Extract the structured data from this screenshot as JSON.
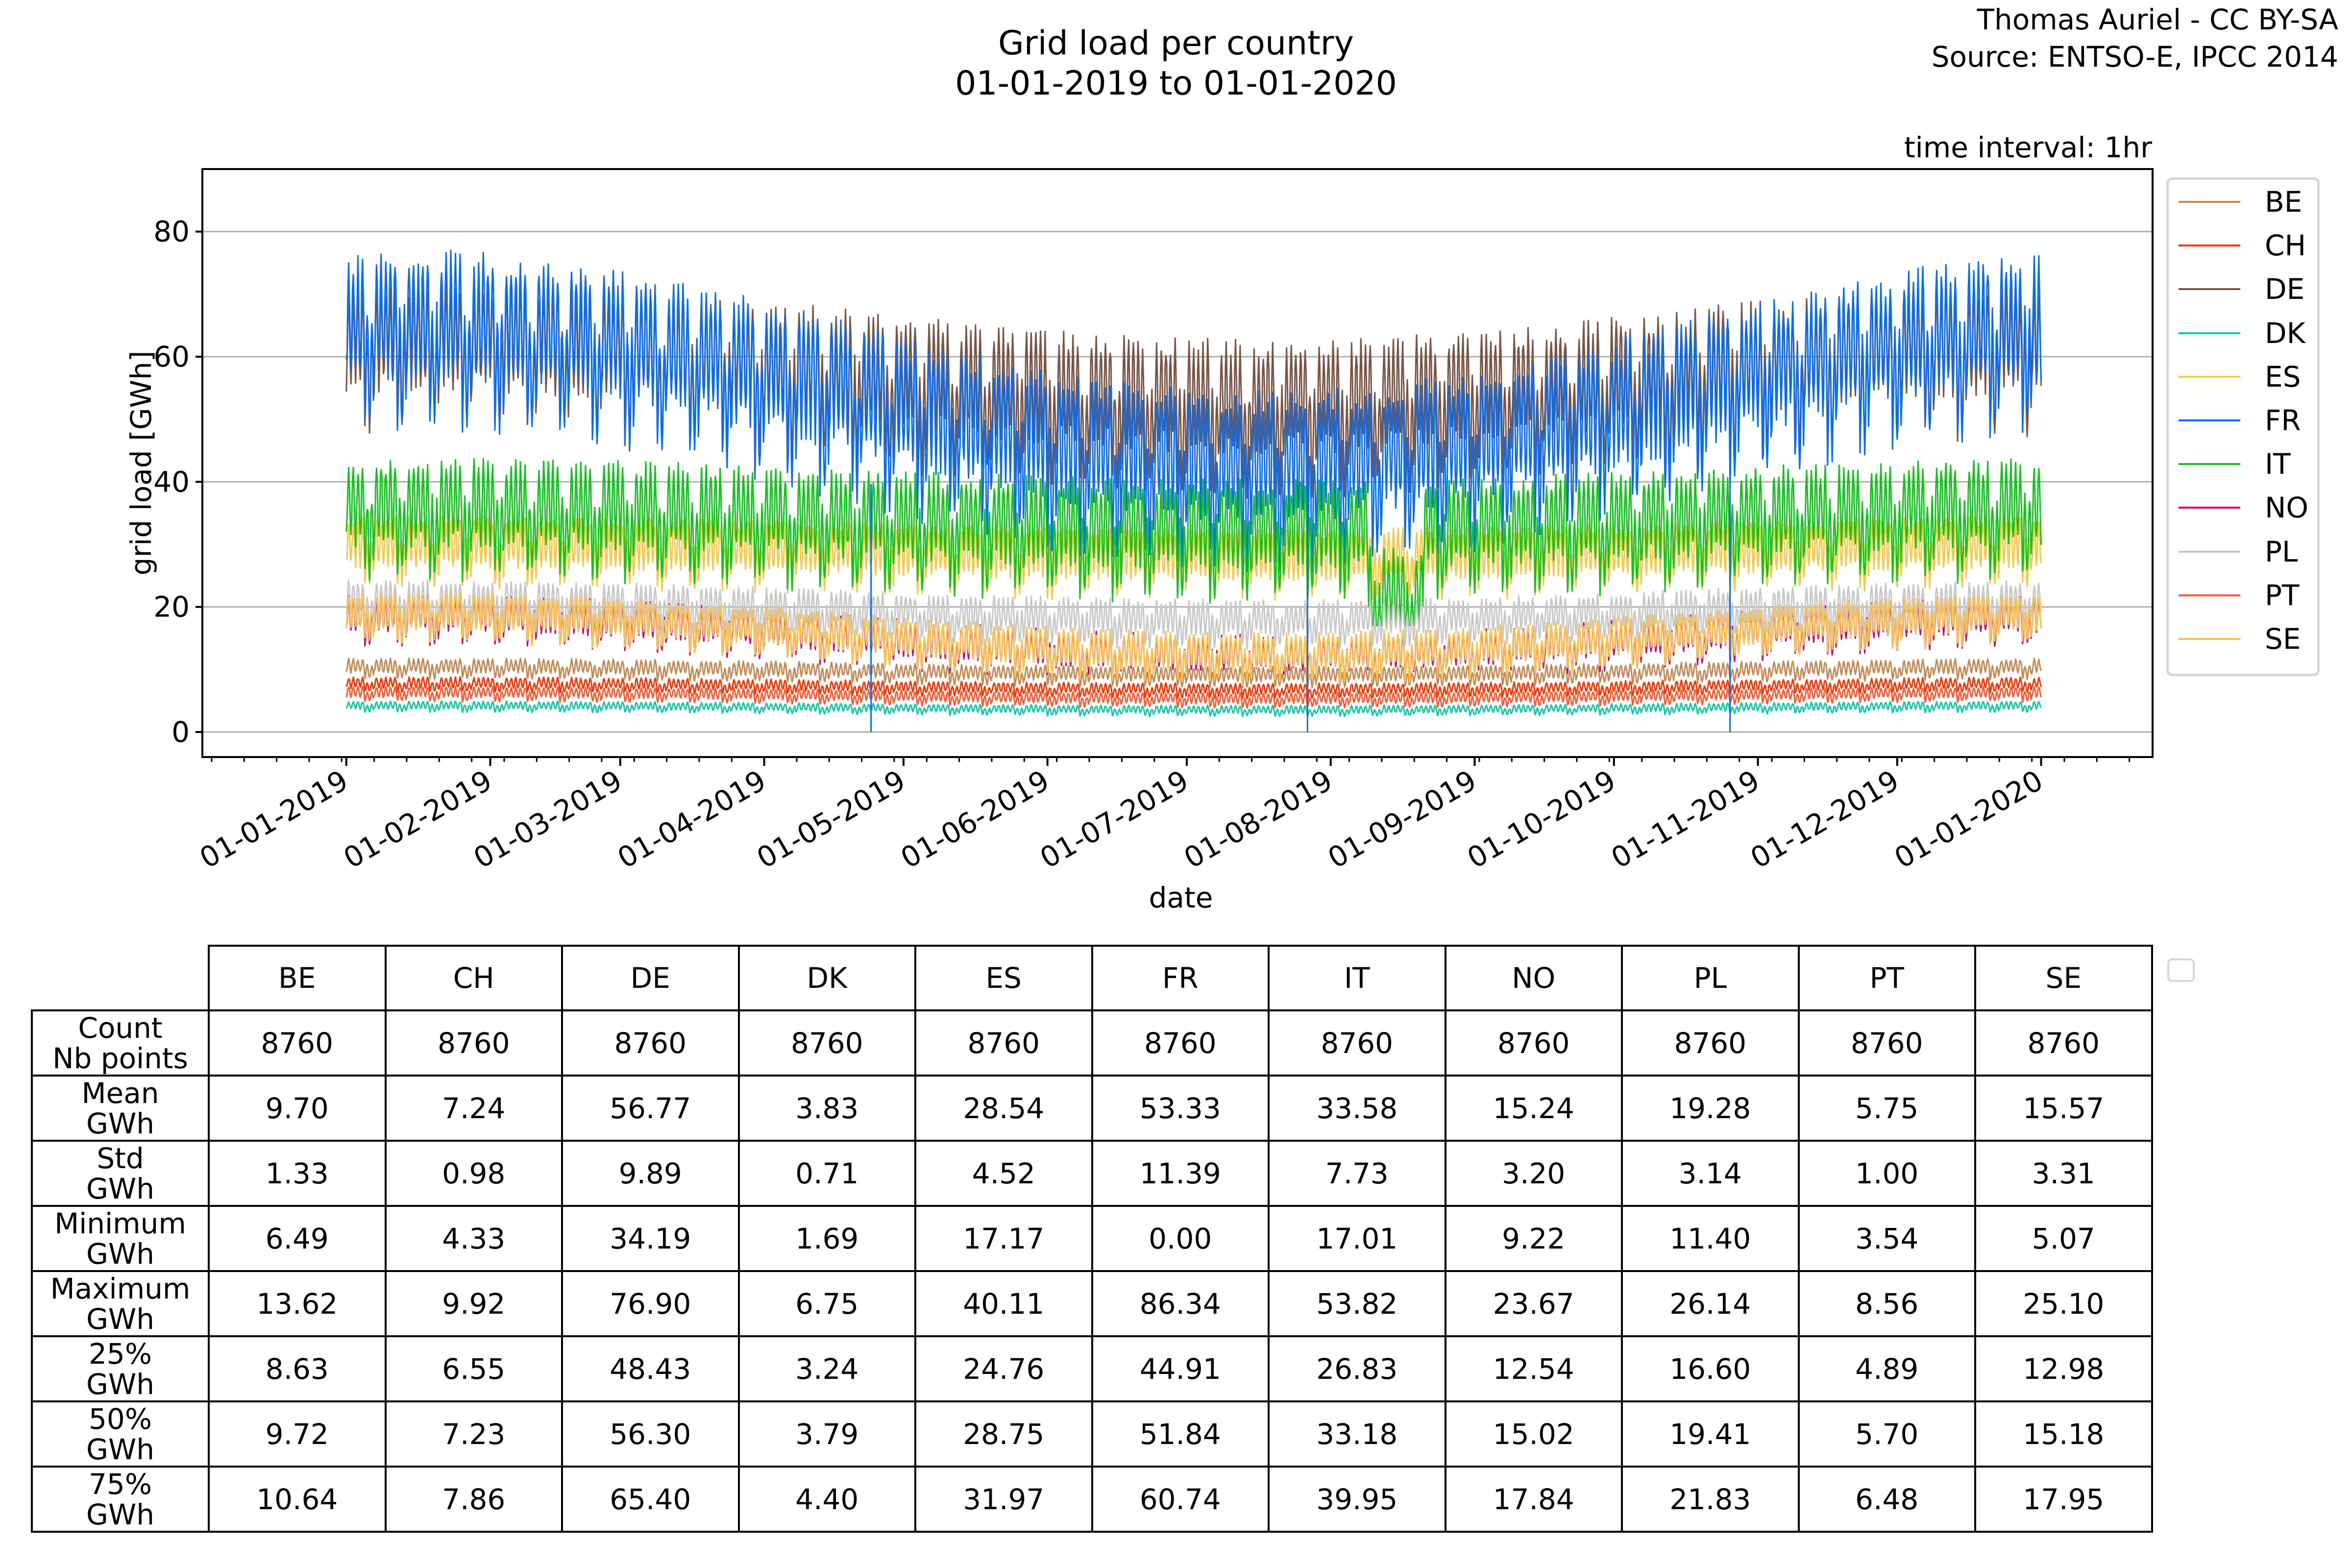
{
  "header": {
    "title_line1": "Grid load per country",
    "title_line2": "01-01-2019 to 01-01-2020",
    "credit_line1": "Thomas Auriel - CC BY-SA",
    "credit_line2": "Source: ENTSO-E, IPCC 2014",
    "time_interval": "time interval: 1hr"
  },
  "chart_data": {
    "type": "line",
    "title": "Grid load per country 01-01-2019 to 01-01-2020",
    "xlabel": "date",
    "ylabel": "grid load [GWh]",
    "xlim": [
      "2018-12-01",
      "2020-01-25"
    ],
    "ylim": [
      -4,
      90
    ],
    "grid": "horizontal",
    "legend_position": "outside-right",
    "yticks": [
      0,
      20,
      40,
      60,
      80
    ],
    "xticks": [
      "01-01-2019",
      "01-02-2019",
      "01-03-2019",
      "01-04-2019",
      "01-05-2019",
      "01-06-2019",
      "01-07-2019",
      "01-08-2019",
      "01-09-2019",
      "01-10-2019",
      "01-11-2019",
      "01-12-2019",
      "01-01-2020"
    ],
    "series": [
      {
        "name": "BE",
        "color": "#c48a56",
        "mean": 9.7,
        "std": 1.33,
        "min": 6.49,
        "max": 13.62
      },
      {
        "name": "CH",
        "color": "#ff3300",
        "mean": 7.24,
        "std": 0.98,
        "min": 4.33,
        "max": 9.92
      },
      {
        "name": "DE",
        "color": "#7a5444",
        "mean": 56.77,
        "std": 9.89,
        "min": 34.19,
        "max": 76.9
      },
      {
        "name": "DK",
        "color": "#14c8a8",
        "mean": 3.83,
        "std": 0.71,
        "min": 1.69,
        "max": 6.75
      },
      {
        "name": "ES",
        "color": "#f6c948",
        "mean": 28.54,
        "std": 4.52,
        "min": 17.17,
        "max": 40.11
      },
      {
        "name": "FR",
        "color": "#0a6cf0",
        "mean": 53.33,
        "std": 11.39,
        "min": 0.0,
        "max": 86.34
      },
      {
        "name": "IT",
        "color": "#14c41e",
        "mean": 33.58,
        "std": 7.73,
        "min": 17.01,
        "max": 53.82
      },
      {
        "name": "NO",
        "color": "#c80e6a",
        "mean": 15.24,
        "std": 3.2,
        "min": 9.22,
        "max": 23.67
      },
      {
        "name": "PL",
        "color": "#c8c8c8",
        "mean": 19.28,
        "std": 3.14,
        "min": 11.4,
        "max": 26.14
      },
      {
        "name": "PT",
        "color": "#ff5a32",
        "mean": 5.75,
        "std": 1.0,
        "min": 3.54,
        "max": 8.56
      },
      {
        "name": "SE",
        "color": "#ffc04c",
        "mean": 15.57,
        "std": 3.31,
        "min": 5.07,
        "max": 25.1
      }
    ]
  },
  "table": {
    "columns": [
      "BE",
      "CH",
      "DE",
      "DK",
      "ES",
      "FR",
      "IT",
      "NO",
      "PL",
      "PT",
      "SE"
    ],
    "rows": [
      {
        "label1": "Count",
        "label2": "Nb points",
        "values": [
          "8760",
          "8760",
          "8760",
          "8760",
          "8760",
          "8760",
          "8760",
          "8760",
          "8760",
          "8760",
          "8760"
        ]
      },
      {
        "label1": "Mean",
        "label2": "GWh",
        "values": [
          "9.70",
          "7.24",
          "56.77",
          "3.83",
          "28.54",
          "53.33",
          "33.58",
          "15.24",
          "19.28",
          "5.75",
          "15.57"
        ]
      },
      {
        "label1": "Std",
        "label2": "GWh",
        "values": [
          "1.33",
          "0.98",
          "9.89",
          "0.71",
          "4.52",
          "11.39",
          "7.73",
          "3.20",
          "3.14",
          "1.00",
          "3.31"
        ]
      },
      {
        "label1": "Minimum",
        "label2": "GWh",
        "values": [
          "6.49",
          "4.33",
          "34.19",
          "1.69",
          "17.17",
          "0.00",
          "17.01",
          "9.22",
          "11.40",
          "3.54",
          "5.07"
        ]
      },
      {
        "label1": "Maximum",
        "label2": "GWh",
        "values": [
          "13.62",
          "9.92",
          "76.90",
          "6.75",
          "40.11",
          "86.34",
          "53.82",
          "23.67",
          "26.14",
          "8.56",
          "25.10"
        ]
      },
      {
        "label1": "25%",
        "label2": "GWh",
        "values": [
          "8.63",
          "6.55",
          "48.43",
          "3.24",
          "24.76",
          "44.91",
          "26.83",
          "12.54",
          "16.60",
          "4.89",
          "12.98"
        ]
      },
      {
        "label1": "50%",
        "label2": "GWh",
        "values": [
          "9.72",
          "7.23",
          "56.30",
          "3.79",
          "28.75",
          "51.84",
          "33.18",
          "15.02",
          "19.41",
          "5.70",
          "15.18"
        ]
      },
      {
        "label1": "75%",
        "label2": "GWh",
        "values": [
          "10.64",
          "7.86",
          "65.40",
          "4.40",
          "31.97",
          "60.74",
          "39.95",
          "17.84",
          "21.83",
          "6.48",
          "17.95"
        ]
      }
    ]
  }
}
